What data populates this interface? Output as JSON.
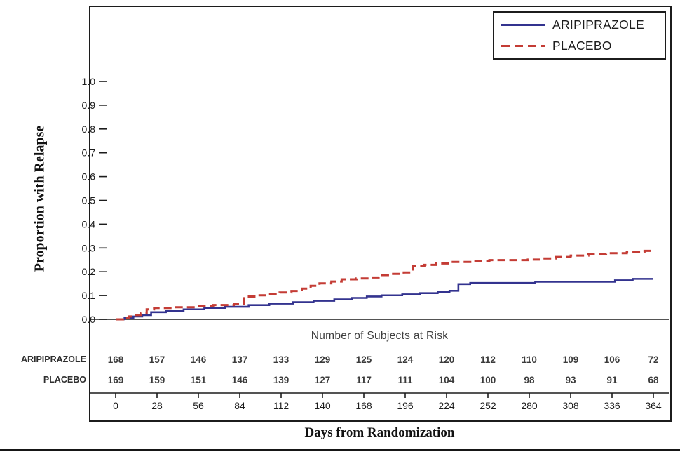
{
  "figure": {
    "background": "#ffffff",
    "border_color": "#1c1c1c"
  },
  "chart_data": {
    "type": "line",
    "subtype": "kaplan-meier-step",
    "title": "",
    "xlabel": "Days from Randomization",
    "ylabel": "Proportion with Relapse",
    "xlim": [
      0,
      364
    ],
    "ylim": [
      0.0,
      1.0
    ],
    "x_ticks": [
      0,
      28,
      56,
      84,
      112,
      140,
      168,
      196,
      224,
      252,
      280,
      308,
      336,
      364
    ],
    "y_ticks": [
      0.0,
      0.1,
      0.2,
      0.3,
      0.4,
      0.5,
      0.6,
      0.7,
      0.8,
      0.9,
      1.0
    ],
    "grid": false,
    "legend_position": "top-right",
    "series": [
      {
        "name": "ARIPIPRAZOLE",
        "color": "#33338f",
        "line_style": "solid",
        "points": [
          [
            0,
            0
          ],
          [
            6,
            0.006
          ],
          [
            12,
            0.012
          ],
          [
            18,
            0.018
          ],
          [
            24,
            0.03
          ],
          [
            34,
            0.036
          ],
          [
            46,
            0.042
          ],
          [
            60,
            0.048
          ],
          [
            74,
            0.053
          ],
          [
            90,
            0.06
          ],
          [
            104,
            0.066
          ],
          [
            120,
            0.072
          ],
          [
            134,
            0.078
          ],
          [
            148,
            0.084
          ],
          [
            160,
            0.09
          ],
          [
            170,
            0.096
          ],
          [
            180,
            0.101
          ],
          [
            194,
            0.105
          ],
          [
            206,
            0.11
          ],
          [
            218,
            0.115
          ],
          [
            226,
            0.12
          ],
          [
            232,
            0.148
          ],
          [
            240,
            0.153
          ],
          [
            284,
            0.158
          ],
          [
            338,
            0.164
          ],
          [
            350,
            0.17
          ],
          [
            364,
            0.17
          ]
        ]
      },
      {
        "name": "PLACEBO",
        "color": "#c43c35",
        "line_style": "dashed",
        "points": [
          [
            0,
            0
          ],
          [
            5,
            0.006
          ],
          [
            9,
            0.012
          ],
          [
            13,
            0.018
          ],
          [
            17,
            0.025
          ],
          [
            21,
            0.042
          ],
          [
            26,
            0.048
          ],
          [
            40,
            0.051
          ],
          [
            54,
            0.055
          ],
          [
            66,
            0.06
          ],
          [
            80,
            0.065
          ],
          [
            87,
            0.096
          ],
          [
            95,
            0.101
          ],
          [
            103,
            0.107
          ],
          [
            111,
            0.113
          ],
          [
            119,
            0.119
          ],
          [
            126,
            0.129
          ],
          [
            132,
            0.141
          ],
          [
            138,
            0.151
          ],
          [
            146,
            0.159
          ],
          [
            153,
            0.168
          ],
          [
            163,
            0.172
          ],
          [
            172,
            0.176
          ],
          [
            178,
            0.186
          ],
          [
            186,
            0.191
          ],
          [
            195,
            0.197
          ],
          [
            201,
            0.223
          ],
          [
            209,
            0.229
          ],
          [
            217,
            0.235
          ],
          [
            227,
            0.241
          ],
          [
            241,
            0.246
          ],
          [
            253,
            0.249
          ],
          [
            279,
            0.251
          ],
          [
            288,
            0.256
          ],
          [
            298,
            0.262
          ],
          [
            308,
            0.268
          ],
          [
            320,
            0.273
          ],
          [
            332,
            0.278
          ],
          [
            346,
            0.283
          ],
          [
            358,
            0.288
          ],
          [
            364,
            0.29
          ]
        ]
      }
    ]
  },
  "legend": {
    "items": [
      {
        "label": "ARIPIPRAZOLE",
        "color": "#33338f",
        "style": "solid"
      },
      {
        "label": "PLACEBO",
        "color": "#c43c35",
        "style": "dashed"
      }
    ]
  },
  "risk_table": {
    "title": "Number of Subjects at Risk",
    "days": [
      0,
      28,
      56,
      84,
      112,
      140,
      168,
      196,
      224,
      252,
      280,
      308,
      336,
      364
    ],
    "rows": [
      {
        "label": "ARIPIPRAZOLE",
        "values": [
          168,
          157,
          146,
          137,
          133,
          129,
          125,
          124,
          120,
          112,
          110,
          109,
          106,
          72
        ]
      },
      {
        "label": "PLACEBO",
        "values": [
          169,
          159,
          151,
          146,
          139,
          127,
          117,
          111,
          104,
          100,
          98,
          93,
          91,
          68
        ]
      }
    ]
  }
}
